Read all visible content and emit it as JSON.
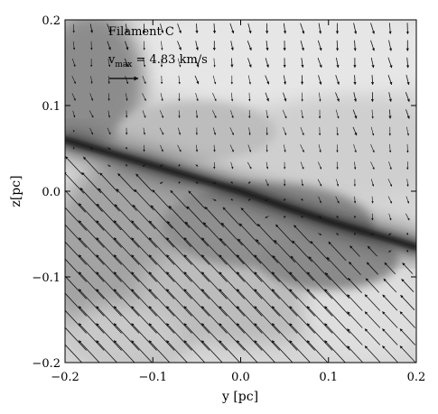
{
  "chart_data": {
    "type": "heatmap",
    "title": "Filament C",
    "xlabel": "y [pc]",
    "ylabel": "z[pc]",
    "xlim": [
      -0.2,
      0.2
    ],
    "ylim": [
      -0.2,
      0.2
    ],
    "xticks": [
      "−0.2",
      "−0.1",
      "0.0",
      "0.1",
      "0.2"
    ],
    "xtick_values": [
      -0.2,
      -0.1,
      0.0,
      0.1,
      0.2
    ],
    "yticks": [
      "−0.2",
      "−0.1",
      "0.0",
      "0.1",
      "0.2"
    ],
    "ytick_values": [
      -0.2,
      -0.1,
      0.0,
      0.1,
      0.2
    ],
    "grid": false,
    "colormap": "grayscale",
    "reference_vector": {
      "label_prefix": "v",
      "label_sub": "max",
      "label_value": " = 4.83 km/s",
      "speed_kms": 4.83
    },
    "filament_ridge": [
      {
        "y": -0.2,
        "z": 0.06
      },
      {
        "y": -0.15,
        "z": 0.045
      },
      {
        "y": -0.1,
        "z": 0.03
      },
      {
        "y": -0.05,
        "z": 0.015
      },
      {
        "y": 0.0,
        "z": 0.0
      },
      {
        "y": 0.05,
        "z": -0.018
      },
      {
        "y": 0.1,
        "z": -0.035
      },
      {
        "y": 0.15,
        "z": -0.05
      },
      {
        "y": 0.2,
        "z": -0.065
      }
    ],
    "velocity_field": {
      "description_above_filament": "weak flow, mostly downward",
      "above": {
        "vy_frac": 0.05,
        "vz_frac": -0.28
      },
      "below": {
        "vy_frac": -0.7,
        "vz_frac": 0.75
      }
    },
    "colors": {
      "background_light": "#d9d9d9",
      "background_mid": "#a8a8a8",
      "filament_dark": "#1a1a1a",
      "arrow": "#111111"
    }
  }
}
